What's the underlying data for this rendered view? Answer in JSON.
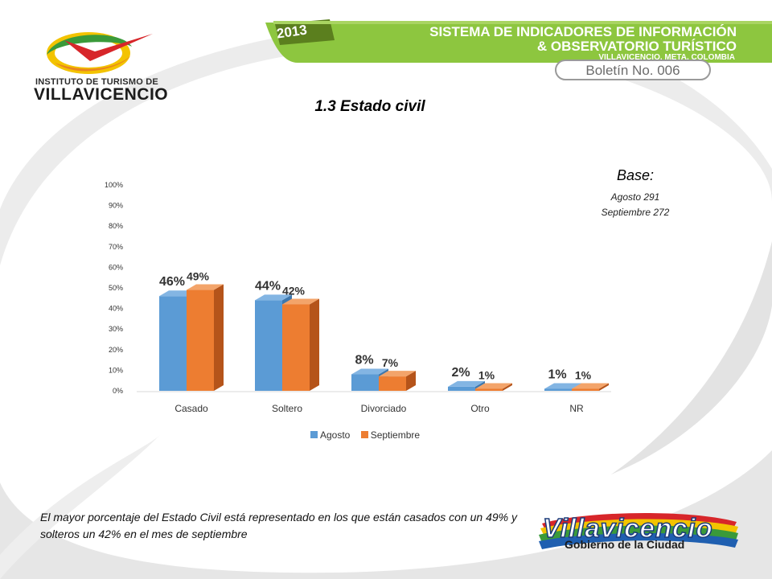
{
  "header": {
    "logo_line1": "INSTITUTO DE TURISMO DE",
    "logo_line2": "VILLAVICENCIO",
    "banner_year": "2013",
    "banner_title_line1": "SISTEMA DE INDICADORES DE INFORMACIÓN",
    "banner_title_line2": "& OBSERVATORIO TURÍSTICO",
    "banner_subtitle": "VILLAVICENCIO, META, COLOMBIA",
    "boletin": "Boletín No. 006"
  },
  "base": {
    "title": "Base:",
    "line1": "Agosto 291",
    "line2": "Septiembre 272"
  },
  "caption": "El mayor porcentaje del Estado Civil está representado en los que están casados con un 49% y solteros un 42% en el mes de septiembre",
  "footer": {
    "logo_text": "Villavicencio",
    "logo_sub": "Gobierno de la Ciudad"
  },
  "colors": {
    "agosto": "#5b9bd5",
    "septiembre": "#ed7d31",
    "banner_green": "#8dc63f",
    "background_swoosh": "#e9e9e9"
  },
  "chart_data": {
    "type": "bar",
    "title": "1.3 Estado civil",
    "categories": [
      "Casado",
      "Soltero",
      "Divorciado",
      "Otro",
      "NR"
    ],
    "series": [
      {
        "name": "Agosto",
        "values": [
          46,
          44,
          8,
          2,
          1
        ],
        "labels": [
          "46%",
          "44%",
          "8%",
          "2%",
          "1%"
        ]
      },
      {
        "name": "Septiembre",
        "values": [
          49,
          42,
          7,
          1,
          1
        ],
        "labels": [
          "49%",
          "42%",
          "7%",
          "1%",
          "1%"
        ]
      }
    ],
    "y_ticks": [
      "0%",
      "10%",
      "20%",
      "30%",
      "40%",
      "50%",
      "60%",
      "70%",
      "80%",
      "90%",
      "100%"
    ],
    "ylim": [
      0,
      100
    ],
    "grid": false,
    "legend": "bottom",
    "style": "3d-clustered-column"
  }
}
